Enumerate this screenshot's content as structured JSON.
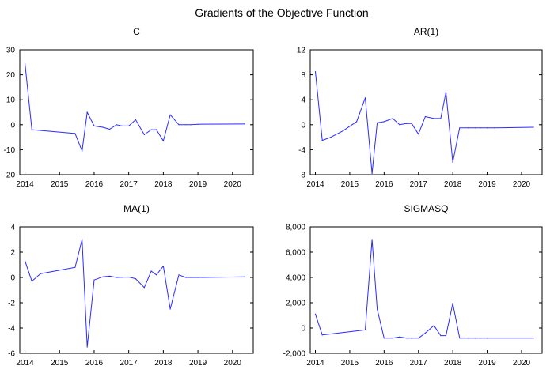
{
  "figure_title": "Gradients of the Objective Function",
  "line_color": "#2b2bff",
  "chart_data": [
    {
      "type": "line",
      "title": "C",
      "xlabel": "",
      "ylabel": "",
      "xlim": [
        2013.85,
        2020.6
      ],
      "ylim": [
        -20,
        30
      ],
      "yticks": [
        -20,
        -10,
        0,
        10,
        20,
        30
      ],
      "ytick_labels": [
        "-20",
        "-10",
        "0",
        "10",
        "20",
        "30"
      ],
      "xticks": [
        2014,
        2015,
        2016,
        2017,
        2018,
        2019,
        2020
      ],
      "xtick_labels": [
        "2014",
        "2015",
        "2016",
        "2017",
        "2018",
        "2019",
        "2020"
      ],
      "grid": false,
      "series": [
        {
          "x": [
            2014.0,
            2014.2,
            2015.45,
            2015.65,
            2015.8,
            2016.0,
            2016.25,
            2016.45,
            2016.65,
            2016.8,
            2017.0,
            2017.2,
            2017.45,
            2017.65,
            2017.8,
            2018.0,
            2018.2,
            2018.45,
            2018.65,
            2018.8,
            2019.0,
            2020.35
          ],
          "y": [
            24.5,
            -2,
            -3.5,
            -10.5,
            5,
            -0.5,
            -1,
            -1.8,
            0,
            -0.5,
            -0.5,
            2,
            -4,
            -2,
            -2,
            -6.5,
            4,
            0,
            0,
            0,
            0.2,
            0.3
          ]
        }
      ]
    },
    {
      "type": "line",
      "title": "AR(1)",
      "xlabel": "",
      "ylabel": "",
      "xlim": [
        2013.85,
        2020.6
      ],
      "ylim": [
        -8,
        12
      ],
      "yticks": [
        -8,
        -4,
        0,
        4,
        8,
        12
      ],
      "ytick_labels": [
        "-8",
        "-4",
        "0",
        "4",
        "8",
        "12"
      ],
      "xticks": [
        2014,
        2015,
        2016,
        2017,
        2018,
        2019,
        2020
      ],
      "xtick_labels": [
        "2014",
        "2015",
        "2016",
        "2017",
        "2018",
        "2019",
        "2020"
      ],
      "grid": false,
      "series": [
        {
          "x": [
            2014.0,
            2014.2,
            2014.45,
            2014.8,
            2015.2,
            2015.45,
            2015.65,
            2015.8,
            2016.0,
            2016.25,
            2016.45,
            2016.65,
            2016.8,
            2017.0,
            2017.2,
            2017.45,
            2017.65,
            2017.8,
            2018.0,
            2018.2,
            2018.45,
            2018.65,
            2018.8,
            2019.0,
            2019.2,
            2020.35
          ],
          "y": [
            8.5,
            -2.5,
            -2,
            -1,
            0.5,
            4.3,
            -7.8,
            0.3,
            0.5,
            1,
            0,
            0.2,
            0.2,
            -1.5,
            1.3,
            1,
            1,
            5.2,
            -6,
            -0.5,
            -0.5,
            -0.5,
            -0.5,
            -0.5,
            -0.5,
            -0.4
          ]
        }
      ]
    },
    {
      "type": "line",
      "title": "MA(1)",
      "xlabel": "",
      "ylabel": "",
      "xlim": [
        2013.85,
        2020.6
      ],
      "ylim": [
        -6,
        4
      ],
      "yticks": [
        -6,
        -4,
        -2,
        0,
        2,
        4
      ],
      "ytick_labels": [
        "-6",
        "-4",
        "-2",
        "0",
        "2",
        "4"
      ],
      "xticks": [
        2014,
        2015,
        2016,
        2017,
        2018,
        2019,
        2020
      ],
      "xtick_labels": [
        "2014",
        "2015",
        "2016",
        "2017",
        "2018",
        "2019",
        "2020"
      ],
      "grid": false,
      "series": [
        {
          "x": [
            2014.0,
            2014.2,
            2014.45,
            2015.45,
            2015.65,
            2015.8,
            2016.0,
            2016.25,
            2016.45,
            2016.65,
            2016.8,
            2017.0,
            2017.2,
            2017.45,
            2017.65,
            2017.8,
            2018.0,
            2018.2,
            2018.45,
            2018.65,
            2018.8,
            2019.0,
            2020.35
          ],
          "y": [
            1.3,
            -0.3,
            0.3,
            0.8,
            3,
            -5.5,
            -0.2,
            0.05,
            0.1,
            0,
            0.02,
            0.03,
            -0.1,
            -0.8,
            0.5,
            0.2,
            0.9,
            -2.5,
            0.2,
            0,
            0,
            0,
            0.05
          ]
        }
      ]
    },
    {
      "type": "line",
      "title": "SIGMASQ",
      "xlabel": "",
      "ylabel": "",
      "xlim": [
        2013.85,
        2020.6
      ],
      "ylim": [
        -2000,
        8000
      ],
      "yticks": [
        -2000,
        0,
        2000,
        4000,
        6000,
        8000
      ],
      "ytick_labels": [
        "-2,000",
        "0",
        "2,000",
        "4,000",
        "6,000",
        "8,000"
      ],
      "xticks": [
        2014,
        2015,
        2016,
        2017,
        2018,
        2019,
        2020
      ],
      "xtick_labels": [
        "2014",
        "2015",
        "2016",
        "2017",
        "2018",
        "2019",
        "2020"
      ],
      "grid": false,
      "series": [
        {
          "x": [
            2014.0,
            2014.2,
            2015.45,
            2015.65,
            2015.8,
            2016.0,
            2016.25,
            2016.45,
            2016.65,
            2016.8,
            2017.0,
            2017.2,
            2017.45,
            2017.65,
            2017.8,
            2018.0,
            2018.2,
            2018.45,
            2018.65,
            2018.8,
            2019.0,
            2020.35
          ],
          "y": [
            1100,
            -550,
            -150,
            7000,
            1500,
            -800,
            -800,
            -700,
            -800,
            -800,
            -800,
            -400,
            200,
            -600,
            -600,
            1950,
            -800,
            -800,
            -800,
            -800,
            -800,
            -800
          ]
        }
      ]
    }
  ]
}
